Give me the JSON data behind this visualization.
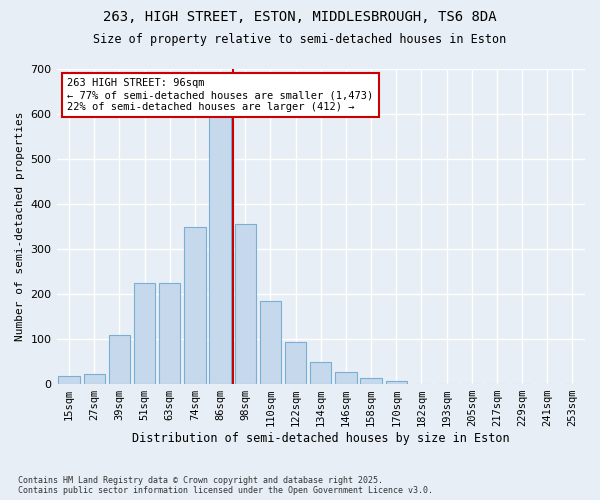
{
  "title_line1": "263, HIGH STREET, ESTON, MIDDLESBROUGH, TS6 8DA",
  "title_line2": "Size of property relative to semi-detached houses in Eston",
  "xlabel": "Distribution of semi-detached houses by size in Eston",
  "ylabel": "Number of semi-detached properties",
  "categories": [
    "15sqm",
    "27sqm",
    "39sqm",
    "51sqm",
    "63sqm",
    "74sqm",
    "86sqm",
    "98sqm",
    "110sqm",
    "122sqm",
    "134sqm",
    "146sqm",
    "158sqm",
    "170sqm",
    "182sqm",
    "193sqm",
    "205sqm",
    "217sqm",
    "229sqm",
    "241sqm",
    "253sqm"
  ],
  "values": [
    18,
    22,
    110,
    225,
    225,
    350,
    600,
    355,
    185,
    93,
    48,
    27,
    13,
    6,
    0,
    0,
    0,
    0,
    0,
    0,
    0
  ],
  "bar_color": "#c6d9ec",
  "bar_edge_color": "#7aafd4",
  "vline_color": "#cc0000",
  "annotation_title": "263 HIGH STREET: 96sqm",
  "annotation_line1": "← 77% of semi-detached houses are smaller (1,473)",
  "annotation_line2": "22% of semi-detached houses are larger (412) →",
  "annotation_box_color": "#ffffff",
  "annotation_box_edge": "#cc0000",
  "ylim": [
    0,
    700
  ],
  "yticks": [
    0,
    100,
    200,
    300,
    400,
    500,
    600,
    700
  ],
  "footer_line1": "Contains HM Land Registry data © Crown copyright and database right 2025.",
  "footer_line2": "Contains public sector information licensed under the Open Government Licence v3.0.",
  "bg_color": "#e8eef5",
  "plot_bg_color": "#e8eef5",
  "grid_color": "#ffffff"
}
